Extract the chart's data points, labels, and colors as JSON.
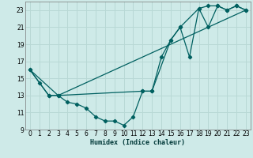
{
  "xlabel": "Humidex (Indice chaleur)",
  "background_color": "#ceeae8",
  "grid_color": "#b8d8d5",
  "line_color": "#006060",
  "xlim": [
    -0.5,
    23.5
  ],
  "ylim": [
    9,
    24
  ],
  "yticks": [
    9,
    11,
    13,
    15,
    17,
    19,
    21,
    23
  ],
  "xticks": [
    0,
    1,
    2,
    3,
    4,
    5,
    6,
    7,
    8,
    9,
    10,
    11,
    12,
    13,
    14,
    15,
    16,
    17,
    18,
    19,
    20,
    21,
    22,
    23
  ],
  "line1_x": [
    0,
    1,
    2,
    3,
    4,
    5,
    6,
    7,
    8,
    9,
    10,
    11,
    12,
    13,
    14,
    15,
    16,
    17,
    18,
    19,
    20,
    21,
    22,
    23
  ],
  "line1_y": [
    16.0,
    14.5,
    13.0,
    13.0,
    12.2,
    12.0,
    11.5,
    10.5,
    10.0,
    10.0,
    9.5,
    10.5,
    13.5,
    13.5,
    17.5,
    19.5,
    21.0,
    17.5,
    23.2,
    21.0,
    23.5,
    23.0,
    23.5,
    23.0
  ],
  "line2_x": [
    0,
    2,
    3,
    12,
    13,
    15,
    16,
    18,
    19,
    20,
    21,
    22,
    23
  ],
  "line2_y": [
    16.0,
    13.0,
    13.0,
    13.5,
    13.5,
    19.5,
    21.0,
    23.2,
    23.5,
    23.5,
    23.0,
    23.5,
    23.0
  ],
  "line3_x": [
    0,
    3,
    23
  ],
  "line3_y": [
    16.0,
    13.0,
    23.0
  ]
}
